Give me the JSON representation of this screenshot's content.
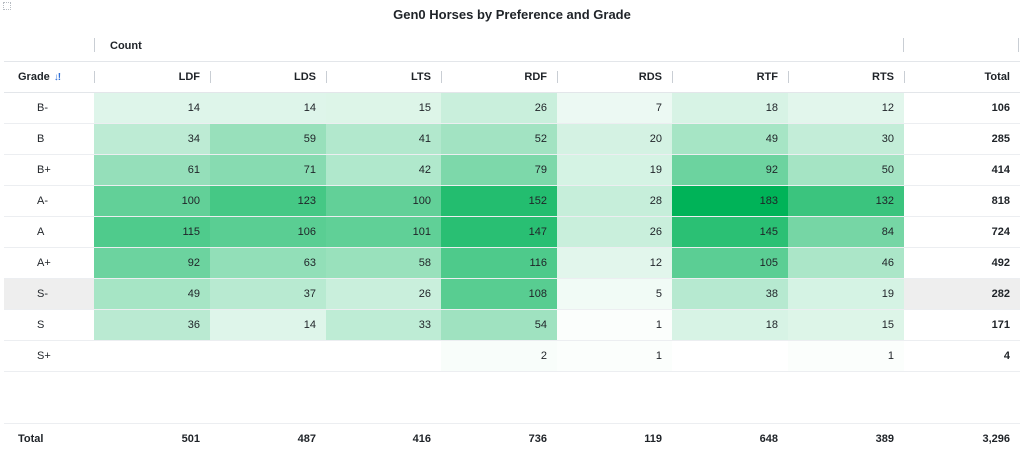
{
  "title": "Gen0 Horses by Preference and Grade",
  "count_label": "Count",
  "grade_header": "Grade",
  "sort_icon": "sort-descending-icon",
  "color_scale": {
    "low": "#ffffff",
    "high": "#00b358"
  },
  "columns": [
    "LDF",
    "LDS",
    "LTS",
    "RDF",
    "RDS",
    "RTF",
    "RTS"
  ],
  "total_header": "Total",
  "highlighted_row": "S-",
  "rows": [
    {
      "grade": "B-",
      "cells": [
        "14",
        "14",
        "15",
        "26",
        "7",
        "18",
        "12"
      ],
      "total": "106"
    },
    {
      "grade": "B",
      "cells": [
        "34",
        "59",
        "41",
        "52",
        "20",
        "49",
        "30"
      ],
      "total": "285"
    },
    {
      "grade": "B+",
      "cells": [
        "61",
        "71",
        "42",
        "79",
        "19",
        "92",
        "50"
      ],
      "total": "414"
    },
    {
      "grade": "A-",
      "cells": [
        "100",
        "123",
        "100",
        "152",
        "28",
        "183",
        "132"
      ],
      "total": "818"
    },
    {
      "grade": "A",
      "cells": [
        "115",
        "106",
        "101",
        "147",
        "26",
        "145",
        "84"
      ],
      "total": "724"
    },
    {
      "grade": "A+",
      "cells": [
        "92",
        "63",
        "58",
        "116",
        "12",
        "105",
        "46"
      ],
      "total": "492"
    },
    {
      "grade": "S-",
      "cells": [
        "49",
        "37",
        "26",
        "108",
        "5",
        "38",
        "19"
      ],
      "total": "282"
    },
    {
      "grade": "S",
      "cells": [
        "36",
        "14",
        "33",
        "54",
        "1",
        "18",
        "15"
      ],
      "total": "171"
    },
    {
      "grade": "S+",
      "cells": [
        "",
        "",
        "",
        "2",
        "1",
        "",
        "1"
      ],
      "total": "4"
    }
  ],
  "totals": {
    "label": "Total",
    "cells": [
      "501",
      "487",
      "416",
      "736",
      "119",
      "648",
      "389"
    ],
    "grand_total": "3,296"
  },
  "chart_data": {
    "type": "heatmap",
    "title": "Gen0 Horses by Preference and Grade",
    "x": [
      "LDF",
      "LDS",
      "LTS",
      "RDF",
      "RDS",
      "RTF",
      "RTS"
    ],
    "y": [
      "B-",
      "B",
      "B+",
      "A-",
      "A",
      "A+",
      "S-",
      "S",
      "S+"
    ],
    "values": [
      [
        14,
        14,
        15,
        26,
        7,
        18,
        12
      ],
      [
        34,
        59,
        41,
        52,
        20,
        49,
        30
      ],
      [
        61,
        71,
        42,
        79,
        19,
        92,
        50
      ],
      [
        100,
        123,
        100,
        152,
        28,
        183,
        132
      ],
      [
        115,
        106,
        101,
        147,
        26,
        145,
        84
      ],
      [
        92,
        63,
        58,
        116,
        12,
        105,
        46
      ],
      [
        49,
        37,
        26,
        108,
        5,
        38,
        19
      ],
      [
        36,
        14,
        33,
        54,
        1,
        18,
        15
      ],
      [
        null,
        null,
        null,
        2,
        1,
        null,
        1
      ]
    ],
    "row_totals": [
      106,
      285,
      414,
      818,
      724,
      492,
      282,
      171,
      4
    ],
    "column_totals": [
      501,
      487,
      416,
      736,
      119,
      648,
      389
    ],
    "grand_total": 3296,
    "value_label": "Count"
  }
}
